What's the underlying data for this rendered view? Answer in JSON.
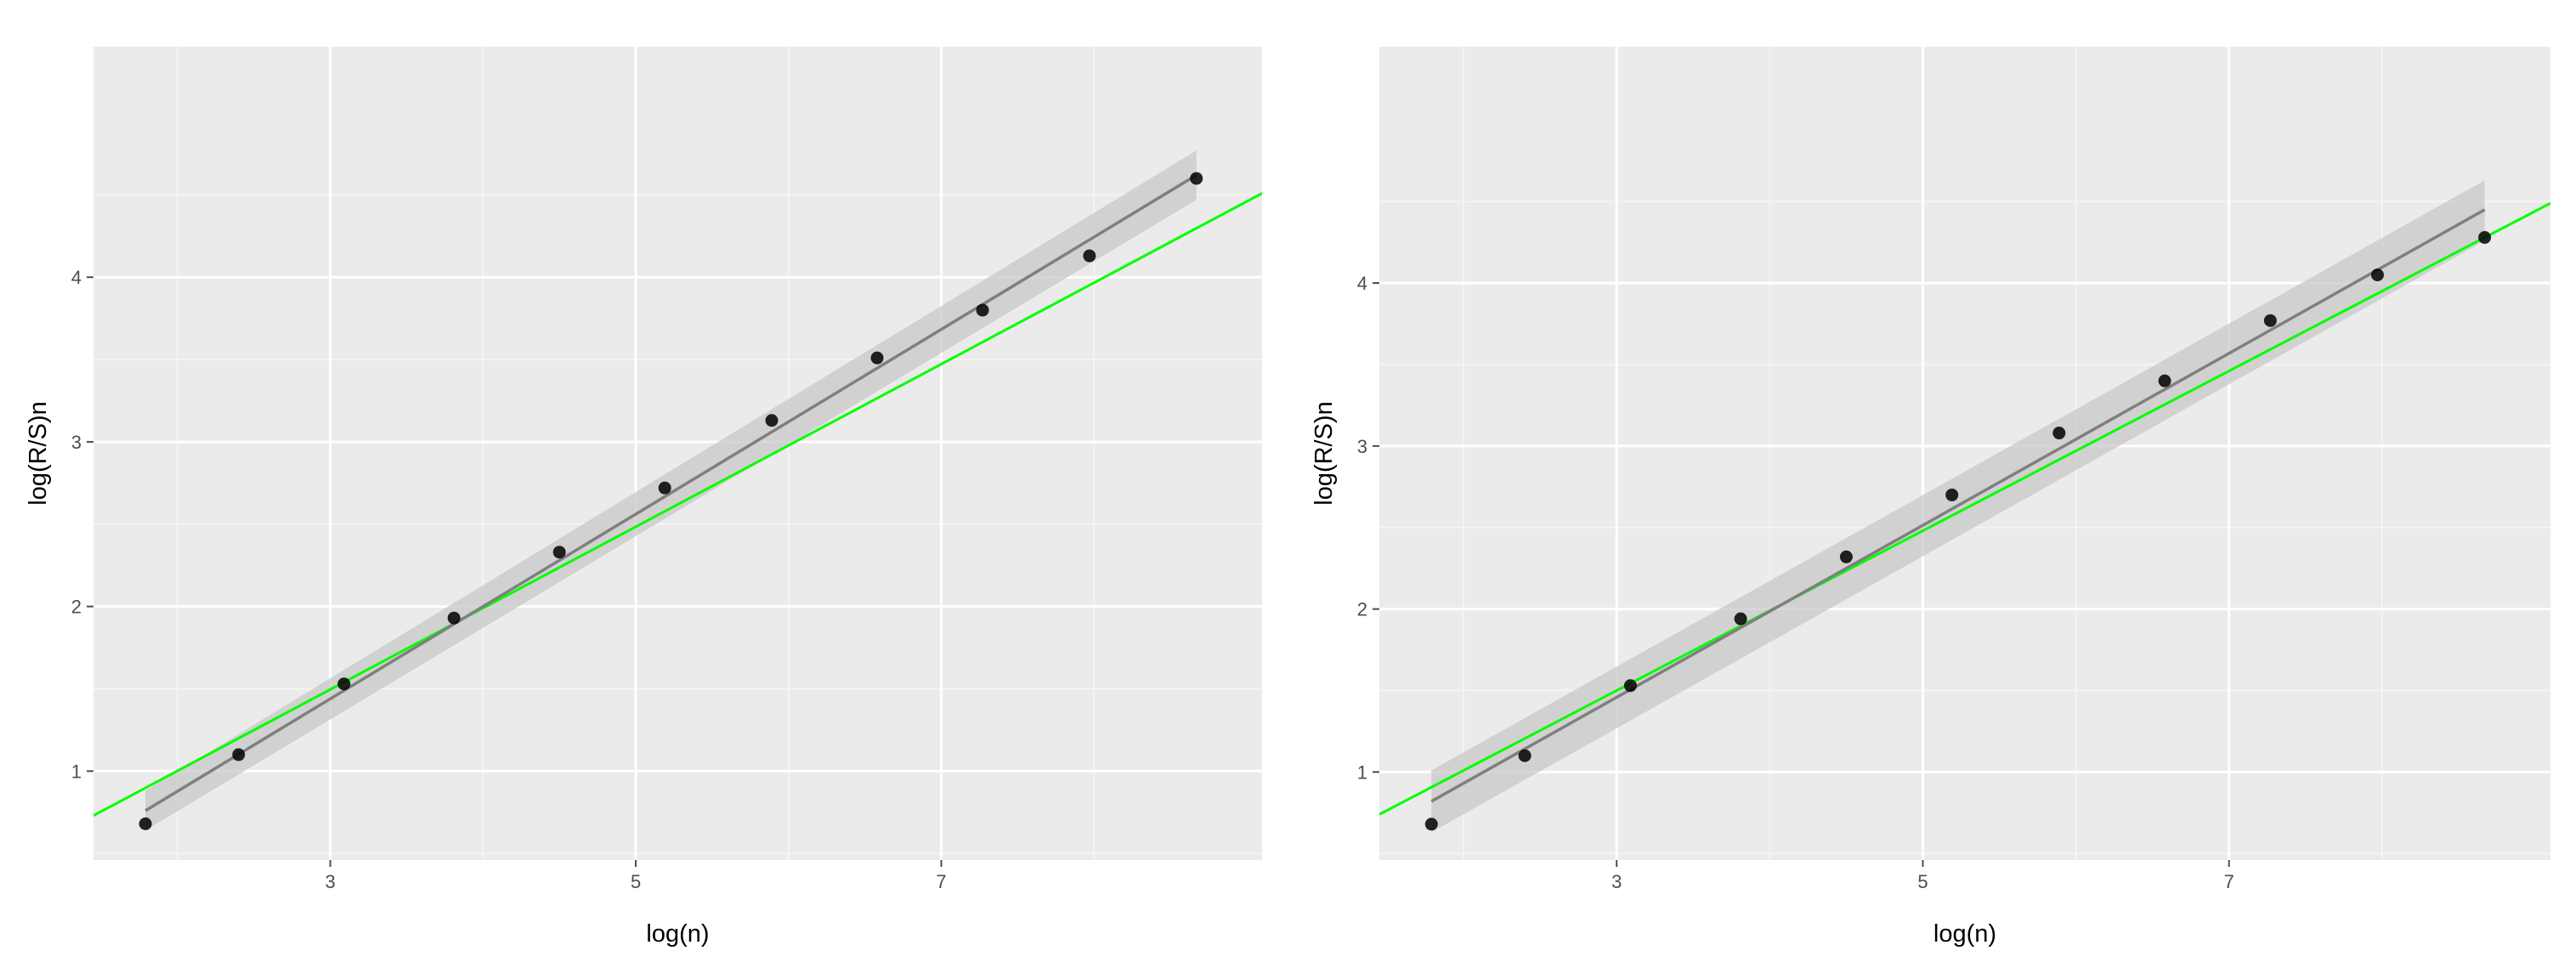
{
  "chart_data": [
    {
      "type": "scatter",
      "xlabel": "log(n)",
      "ylabel": "log(R/S)n",
      "xlim": [
        1.45,
        9.1
      ],
      "ylim": [
        0.46,
        5.4
      ],
      "x_ticks": [
        3,
        5,
        7
      ],
      "y_ticks": [
        1,
        2,
        3,
        4
      ],
      "grid": true,
      "points": {
        "x": [
          1.79,
          2.4,
          3.09,
          3.81,
          4.5,
          5.19,
          5.89,
          6.58,
          7.27,
          7.97,
          8.67
        ],
        "y": [
          0.68,
          1.1,
          1.53,
          1.93,
          2.33,
          2.72,
          3.13,
          3.51,
          3.8,
          4.13,
          4.6
        ]
      },
      "fit_line": {
        "color": "#7f7f7f",
        "x0": 1.79,
        "y0": 0.76,
        "x1": 8.67,
        "y1": 4.62
      },
      "confidence_band": {
        "color": "#c8c8c8",
        "lower_start": 0.64,
        "upper_start": 0.88,
        "lower_end": 4.47,
        "upper_end": 4.77
      },
      "reference_line": {
        "color": "#00ff00",
        "x0": 1.45,
        "y0": 0.73,
        "x1": 9.1,
        "y1": 4.51
      }
    },
    {
      "type": "scatter",
      "xlabel": "log(n)",
      "ylabel": "log(R/S)n",
      "xlim": [
        1.45,
        9.1
      ],
      "ylim": [
        0.46,
        5.45
      ],
      "x_ticks": [
        3,
        5,
        7
      ],
      "y_ticks": [
        1,
        2,
        3,
        4
      ],
      "grid": true,
      "points": {
        "x": [
          1.79,
          2.4,
          3.09,
          3.81,
          4.5,
          5.19,
          5.89,
          6.58,
          7.27,
          7.97,
          8.67
        ],
        "y": [
          0.68,
          1.1,
          1.53,
          1.94,
          2.32,
          2.7,
          3.08,
          3.4,
          3.77,
          4.05,
          4.28
        ]
      },
      "fit_line": {
        "color": "#7f7f7f",
        "x0": 1.79,
        "y0": 0.82,
        "x1": 8.67,
        "y1": 4.45
      },
      "confidence_band": {
        "color": "#c8c8c8",
        "lower_start": 0.63,
        "upper_start": 1.01,
        "lower_end": 4.26,
        "upper_end": 4.63
      },
      "reference_line": {
        "color": "#00ff00",
        "x0": 1.45,
        "y0": 0.74,
        "x1": 9.1,
        "y1": 4.49
      }
    }
  ],
  "colors": {
    "panel_background": "#ebebeb",
    "grid_major": "#ffffff",
    "point": "#000000"
  }
}
